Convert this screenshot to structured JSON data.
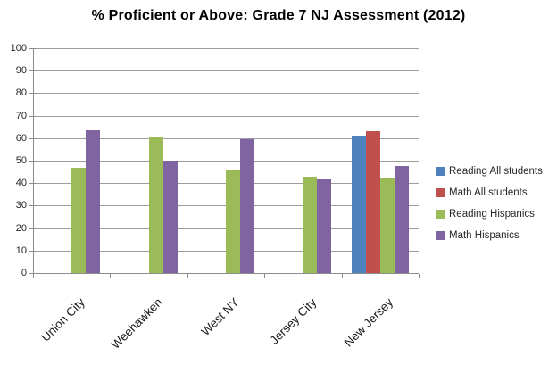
{
  "title": "% Proficient or Above: Grade 7 NJ Assessment (2012)",
  "colors": {
    "series_blue": "#4F81BD",
    "series_red": "#C0504D",
    "series_green": "#9BBB59",
    "series_purple": "#8064A2",
    "gridline": "#9C9C9C",
    "axis": "#8C8C8C",
    "tick_text": "#262626",
    "title_text": "#000000"
  },
  "chart_data": {
    "type": "bar",
    "title": "% Proficient or Above: Grade 7 NJ Assessment (2012)",
    "categories": [
      "Union City",
      "Weehawken",
      "West NY",
      "Jersey City",
      "New Jersey"
    ],
    "series": [
      {
        "name": "Reading All students",
        "color": "#4F81BD",
        "values": [
          null,
          null,
          null,
          null,
          61
        ]
      },
      {
        "name": "Math All students",
        "color": "#C0504D",
        "values": [
          null,
          null,
          null,
          null,
          63
        ]
      },
      {
        "name": "Reading Hispanics",
        "color": "#9BBB59",
        "values": [
          47,
          60.5,
          45.5,
          43,
          42.5
        ]
      },
      {
        "name": "Math Hispanics",
        "color": "#8064A2",
        "values": [
          63.5,
          50,
          59.5,
          41.5,
          47.5
        ]
      }
    ],
    "xlabel": "",
    "ylabel": "",
    "ylim": [
      0,
      100
    ],
    "ytick_step": 10,
    "yticks": [
      0,
      10,
      20,
      30,
      40,
      50,
      60,
      70,
      80,
      90,
      100
    ],
    "grid": true,
    "legend_position": "right"
  }
}
